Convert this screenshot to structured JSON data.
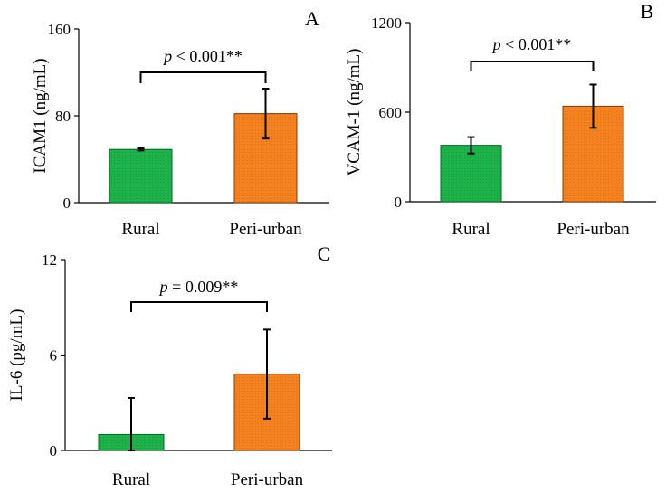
{
  "colors": {
    "rural": "#1db34a",
    "periurban": "#f58220",
    "rural_stroke": "#006b20",
    "periurban_stroke": "#8a3a00"
  },
  "chart_data": [
    {
      "type": "bar",
      "panel_label": "A",
      "categories": [
        "Rural",
        "Peri-urban"
      ],
      "values": [
        49,
        82
      ],
      "error": [
        1,
        23
      ],
      "ylabel": "ICAM1 (ng/mL)",
      "ylim": [
        0,
        160
      ],
      "yticks": [
        "0",
        "80",
        "160"
      ],
      "significance": {
        "p_italic": "p",
        "text": " < 0.001**"
      }
    },
    {
      "type": "bar",
      "panel_label": "B",
      "categories": [
        "Rural",
        "Peri-urban"
      ],
      "values": [
        378,
        640
      ],
      "error": [
        55,
        145
      ],
      "ylabel": "VCAM-1 (ng/mL)",
      "ylim": [
        0,
        1200
      ],
      "yticks": [
        "0",
        "600",
        "1200"
      ],
      "significance": {
        "p_italic": "p",
        "text": " < 0.001**"
      }
    },
    {
      "type": "bar",
      "panel_label": "C",
      "categories": [
        "Rural",
        "Peri-urban"
      ],
      "values": [
        1.0,
        4.8
      ],
      "error": [
        2.3,
        2.8
      ],
      "ylabel": "IL-6 (pg/mL)",
      "ylim": [
        0,
        12
      ],
      "yticks": [
        "0",
        "6",
        "12"
      ],
      "significance": {
        "p_italic": "p",
        "text": " = 0.009**"
      }
    }
  ]
}
